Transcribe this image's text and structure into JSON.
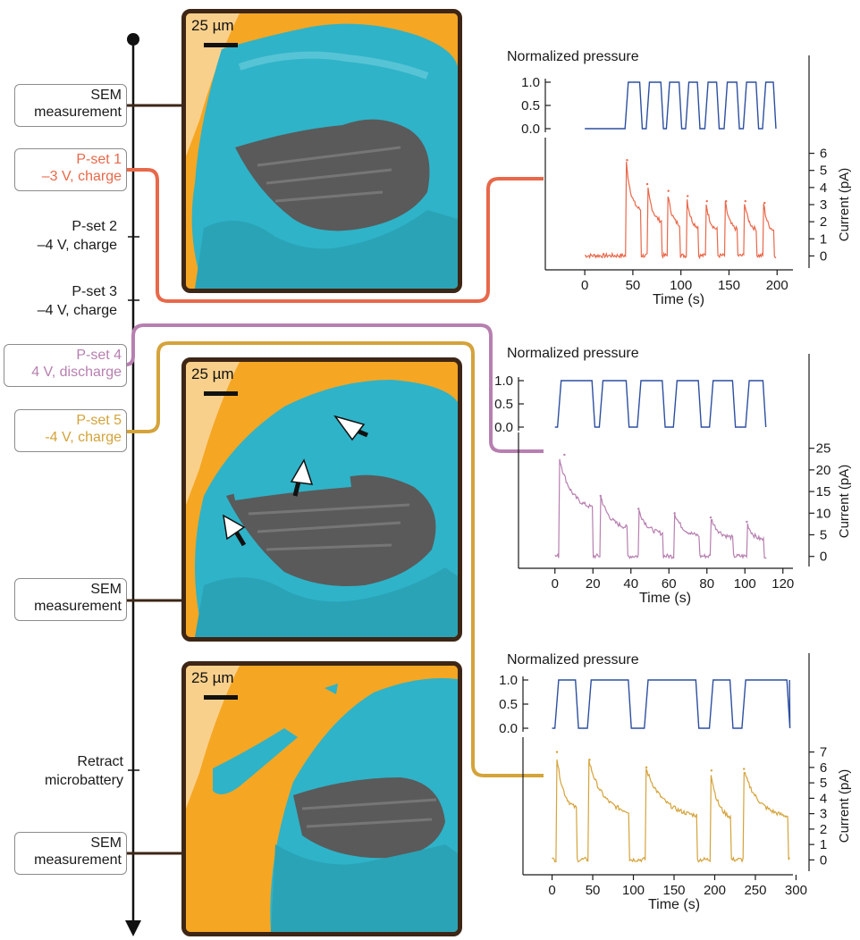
{
  "timeline": {
    "stages": [
      {
        "id": "sem1",
        "lines": [
          "SEM",
          "measurement"
        ],
        "boxed": true,
        "color": "#1a1a1a"
      },
      {
        "id": "p1",
        "lines": [
          "P-set 1",
          "–3 V, charge"
        ],
        "boxed": true,
        "color": "#e8684a"
      },
      {
        "id": "p2",
        "lines": [
          "P-set 2",
          "–4 V, charge"
        ],
        "boxed": false,
        "color": "#1a1a1a"
      },
      {
        "id": "p3",
        "lines": [
          "P-set 3",
          "–4 V, charge"
        ],
        "boxed": false,
        "color": "#1a1a1a"
      },
      {
        "id": "p4",
        "lines": [
          "P-set 4",
          "4 V, discharge"
        ],
        "boxed": true,
        "color": "#b77fb0"
      },
      {
        "id": "p5",
        "lines": [
          "P-set 5",
          "-4 V, charge"
        ],
        "boxed": true,
        "color": "#d4a33a"
      },
      {
        "id": "sem2",
        "lines": [
          "SEM",
          "measurement"
        ],
        "boxed": true,
        "color": "#1a1a1a"
      },
      {
        "id": "retract",
        "lines": [
          "Retract",
          "microbattery"
        ],
        "boxed": false,
        "color": "#1a1a1a"
      },
      {
        "id": "sem3",
        "lines": [
          "SEM",
          "measurement"
        ],
        "boxed": true,
        "color": "#1a1a1a"
      }
    ]
  },
  "sem_images": [
    {
      "scale_label": "25 µm"
    },
    {
      "scale_label": "25 µm"
    },
    {
      "scale_label": "25 µm"
    }
  ],
  "colors": {
    "pset1": "#e8684a",
    "pset4": "#b77fb0",
    "pset5": "#d4a33a",
    "pressure": "#2d4fa0",
    "sem_bg": "#f5a623",
    "particle": "#2fb3c8",
    "substrate": "#5a5a5a",
    "frame": "#3d2616"
  },
  "chart_data": [
    {
      "type": "line",
      "top_title": "Normalized pressure",
      "xlabel": "Time (s)",
      "ylabel": "Current (pA)",
      "x_ticks": [
        0,
        50,
        100,
        150,
        200
      ],
      "pressure_ticks": [
        "1.0",
        "0.5",
        "0.0"
      ],
      "current_ticks": [
        0,
        1,
        2,
        3,
        4,
        5,
        6
      ],
      "xlim": [
        -15,
        210
      ],
      "ylim": [
        -0.5,
        6.5
      ],
      "pressure_on_intervals": [
        [
          43,
          58
        ],
        [
          65,
          80
        ],
        [
          86,
          99
        ],
        [
          106,
          118
        ],
        [
          126,
          138
        ],
        [
          146,
          159
        ],
        [
          166,
          179
        ],
        [
          186,
          197
        ]
      ],
      "current_peaks": [
        {
          "t": 44,
          "i": 5.6
        },
        {
          "t": 65,
          "i": 4.2
        },
        {
          "t": 87,
          "i": 3.8
        },
        {
          "t": 107,
          "i": 3.5
        },
        {
          "t": 127,
          "i": 3.2
        },
        {
          "t": 147,
          "i": 3.2
        },
        {
          "t": 167,
          "i": 3.2
        },
        {
          "t": 187,
          "i": 3.1
        }
      ],
      "color": "#e8684a"
    },
    {
      "type": "line",
      "top_title": "Normalized pressure",
      "xlabel": "Time (s)",
      "ylabel": "Current (pA)",
      "x_ticks": [
        0,
        20,
        40,
        60,
        80,
        100,
        120
      ],
      "pressure_ticks": [
        "1.0",
        "0.5",
        "0.0"
      ],
      "current_ticks": [
        0,
        5,
        10,
        15,
        20,
        25
      ],
      "xlim": [
        -6,
        122
      ],
      "ylim": [
        -1.5,
        27
      ],
      "pressure_on_intervals": [
        [
          2,
          20
        ],
        [
          24,
          38
        ],
        [
          44,
          57
        ],
        [
          63,
          76
        ],
        [
          82,
          94
        ],
        [
          101,
          110
        ]
      ],
      "current_peaks": [
        {
          "t": 5,
          "i": 23.5
        },
        {
          "t": 24,
          "i": 14
        },
        {
          "t": 44,
          "i": 11
        },
        {
          "t": 63,
          "i": 10
        },
        {
          "t": 82,
          "i": 9
        },
        {
          "t": 101,
          "i": 8
        }
      ],
      "color": "#b77fb0"
    },
    {
      "type": "line",
      "top_title": "Normalized pressure",
      "xlabel": "Time (s)",
      "ylabel": "Current (pA)",
      "x_ticks": [
        0,
        50,
        100,
        150,
        200,
        250,
        300
      ],
      "pressure_ticks": [
        "1.0",
        "0.5",
        "0.0"
      ],
      "current_ticks": [
        0,
        1,
        2,
        3,
        4,
        5,
        6,
        7
      ],
      "xlim": [
        -5,
        305
      ],
      "ylim": [
        -0.5,
        7.5
      ],
      "pressure_on_intervals": [
        [
          5,
          30
        ],
        [
          45,
          95
        ],
        [
          115,
          178
        ],
        [
          195,
          220
        ],
        [
          235,
          290
        ]
      ],
      "current_peaks": [
        {
          "t": 6,
          "i": 7.0
        },
        {
          "t": 46,
          "i": 6.5
        },
        {
          "t": 116,
          "i": 6.0
        },
        {
          "t": 196,
          "i": 5.8
        },
        {
          "t": 236,
          "i": 5.9
        }
      ],
      "color": "#d4a33a"
    }
  ]
}
